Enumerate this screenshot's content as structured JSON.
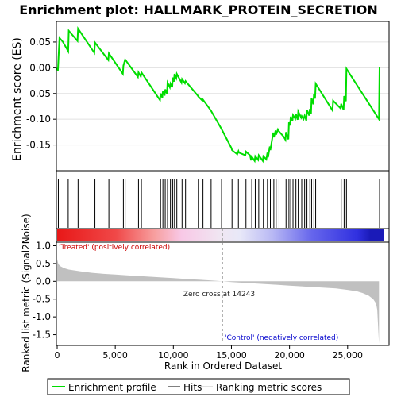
{
  "chart_data": {
    "type": "line",
    "title": "Enrichment plot: HALLMARK_PROTEIN_SECRETION",
    "panels": {
      "enrichment": {
        "ylabel": "Enrichment score (ES)",
        "ylim": [
          -0.2,
          0.09
        ],
        "yticks": [
          "-0.15",
          "-0.10",
          "-0.05",
          "0.00",
          "0.05"
        ],
        "ytick_values": [
          -0.15,
          -0.1,
          -0.05,
          0.0,
          0.05
        ],
        "grid": true,
        "series": [
          {
            "name": "Enrichment profile",
            "color": "#00dd00",
            "x": [
              0,
              60,
              200,
              500,
              950,
              1000,
              1750,
              1800,
              3200,
              3250,
              4400,
              4450,
              5650,
              5700,
              5850,
              6950,
              7000,
              7200,
              7250,
              8850,
              8900,
              9050,
              9100,
              9250,
              9300,
              9450,
              9500,
              9700,
              9750,
              9900,
              9950,
              10050,
              10100,
              10250,
              10300,
              10700,
              10750,
              11000,
              11050,
              12100,
              12150,
              12500,
              12550,
              13200,
              13250,
              14100,
              14150,
              15000,
              15050,
              15500,
              15600,
              15650,
              16200,
              16250,
              16600,
              16700,
              16750,
              17000,
              17050,
              17300,
              17350,
              17700,
              17750,
              18000,
              18100,
              18150,
              18300,
              18350,
              18600,
              18650,
              18800,
              18850,
              19000,
              19100,
              19500,
              19650,
              19700,
              19900,
              19950,
              20050,
              20100,
              20250,
              20300,
              20500,
              20550,
              20700,
              20750,
              21000,
              21050,
              21200,
              21300,
              21450,
              21500,
              21700,
              21750,
              21850,
              21900,
              22050,
              22100,
              22200,
              22250,
              23700,
              23750,
              24400,
              24450,
              24650,
              24700,
              24850,
              24900,
              27700,
              27750
            ],
            "y": [
              0.0,
              -0.006,
              0.058,
              0.05,
              0.032,
              0.072,
              0.052,
              0.076,
              0.029,
              0.049,
              0.015,
              0.028,
              -0.012,
              0.004,
              0.016,
              -0.018,
              -0.009,
              -0.017,
              -0.009,
              -0.063,
              -0.05,
              -0.058,
              -0.046,
              -0.054,
              -0.042,
              -0.05,
              -0.029,
              -0.038,
              -0.031,
              -0.038,
              -0.019,
              -0.027,
              -0.012,
              -0.02,
              -0.012,
              -0.029,
              -0.022,
              -0.03,
              -0.026,
              -0.054,
              -0.056,
              -0.064,
              -0.062,
              -0.082,
              -0.084,
              -0.117,
              -0.119,
              -0.156,
              -0.16,
              -0.168,
              -0.162,
              -0.165,
              -0.17,
              -0.163,
              -0.17,
              -0.18,
              -0.173,
              -0.181,
              -0.172,
              -0.179,
              -0.17,
              -0.181,
              -0.172,
              -0.178,
              -0.165,
              -0.174,
              -0.153,
              -0.16,
              -0.126,
              -0.135,
              -0.122,
              -0.13,
              -0.12,
              -0.124,
              -0.134,
              -0.14,
              -0.125,
              -0.139,
              -0.106,
              -0.112,
              -0.095,
              -0.103,
              -0.092,
              -0.099,
              -0.09,
              -0.101,
              -0.085,
              -0.097,
              -0.094,
              -0.1,
              -0.093,
              -0.103,
              -0.082,
              -0.093,
              -0.08,
              -0.09,
              -0.059,
              -0.071,
              -0.051,
              -0.06,
              -0.031,
              -0.083,
              -0.064,
              -0.079,
              -0.07,
              -0.082,
              -0.055,
              -0.065,
              -0.002,
              -0.1,
              0.001
            ]
          }
        ],
        "hits_label": "Hits",
        "hits": [
          100,
          950,
          1800,
          3250,
          4450,
          5700,
          5850,
          7000,
          7250,
          8900,
          9100,
          9300,
          9500,
          9750,
          9950,
          10100,
          10300,
          10750,
          11050,
          12150,
          12550,
          13250,
          14150,
          15050,
          15600,
          16250,
          16750,
          17050,
          17350,
          17750,
          18100,
          18350,
          18650,
          18850,
          19100,
          19700,
          19950,
          20100,
          20300,
          20550,
          20750,
          21050,
          21300,
          21500,
          21750,
          21900,
          22100,
          22250,
          23750,
          24450,
          24700,
          24900,
          27750
        ]
      },
      "ranked_metric": {
        "ylabel": "Ranked list metric (Signal2Noise)",
        "xlabel": "Rank in Ordered Dataset",
        "ylim": [
          -1.8,
          1.1
        ],
        "yticks": [
          "-1.5",
          "-1.0",
          "-0.5",
          "0.0",
          "0.5",
          "1.0"
        ],
        "ytick_values": [
          -1.5,
          -1.0,
          -0.5,
          0.0,
          0.5,
          1.0
        ],
        "xlim": [
          0,
          28500
        ],
        "xticks": [
          "0",
          "5,000",
          "10,000",
          "15,000",
          "20,000",
          "25,000"
        ],
        "xtick_values": [
          0,
          5000,
          10000,
          15000,
          20000,
          25000
        ],
        "metric_profile": {
          "series_name": "Ranking metric scores",
          "color": "#c0c0c0",
          "x": [
            0,
            100,
            300,
            600,
            1000,
            2000,
            3000,
            4000,
            5000,
            6000,
            7000,
            8000,
            9000,
            10000,
            11000,
            12000,
            13000,
            14243,
            15000,
            16000,
            17000,
            18000,
            19000,
            20000,
            21000,
            22000,
            23000,
            24000,
            25000,
            25800,
            26300,
            26800,
            27200,
            27450,
            27550,
            27600,
            27700
          ],
          "y": [
            0.62,
            0.48,
            0.42,
            0.37,
            0.33,
            0.28,
            0.24,
            0.21,
            0.19,
            0.17,
            0.15,
            0.13,
            0.11,
            0.09,
            0.07,
            0.05,
            0.03,
            0.0,
            -0.02,
            -0.04,
            -0.06,
            -0.08,
            -0.1,
            -0.12,
            -0.14,
            -0.16,
            -0.18,
            -0.2,
            -0.24,
            -0.28,
            -0.33,
            -0.4,
            -0.5,
            -0.62,
            -0.8,
            -1.1,
            -1.75
          ]
        },
        "zero_cross": 14243,
        "zero_cross_label": "Zero cross at 14243",
        "treated_label": "'Treated' (positively correlated)",
        "control_label": "'Control' (negatively correlated)"
      }
    },
    "legend": {
      "placement": "bottom",
      "entries": [
        "Enrichment profile",
        "Hits",
        "Ranking metric scores"
      ]
    }
  },
  "colors": {
    "es_line": "#00dd00",
    "hit_line": "#000000",
    "metric_fill": "#c0c0c0",
    "grid": "#e0e0e0",
    "treated_text": "#cc0000",
    "control_text": "#0000cc",
    "zero_line": "#aaaaaa"
  }
}
